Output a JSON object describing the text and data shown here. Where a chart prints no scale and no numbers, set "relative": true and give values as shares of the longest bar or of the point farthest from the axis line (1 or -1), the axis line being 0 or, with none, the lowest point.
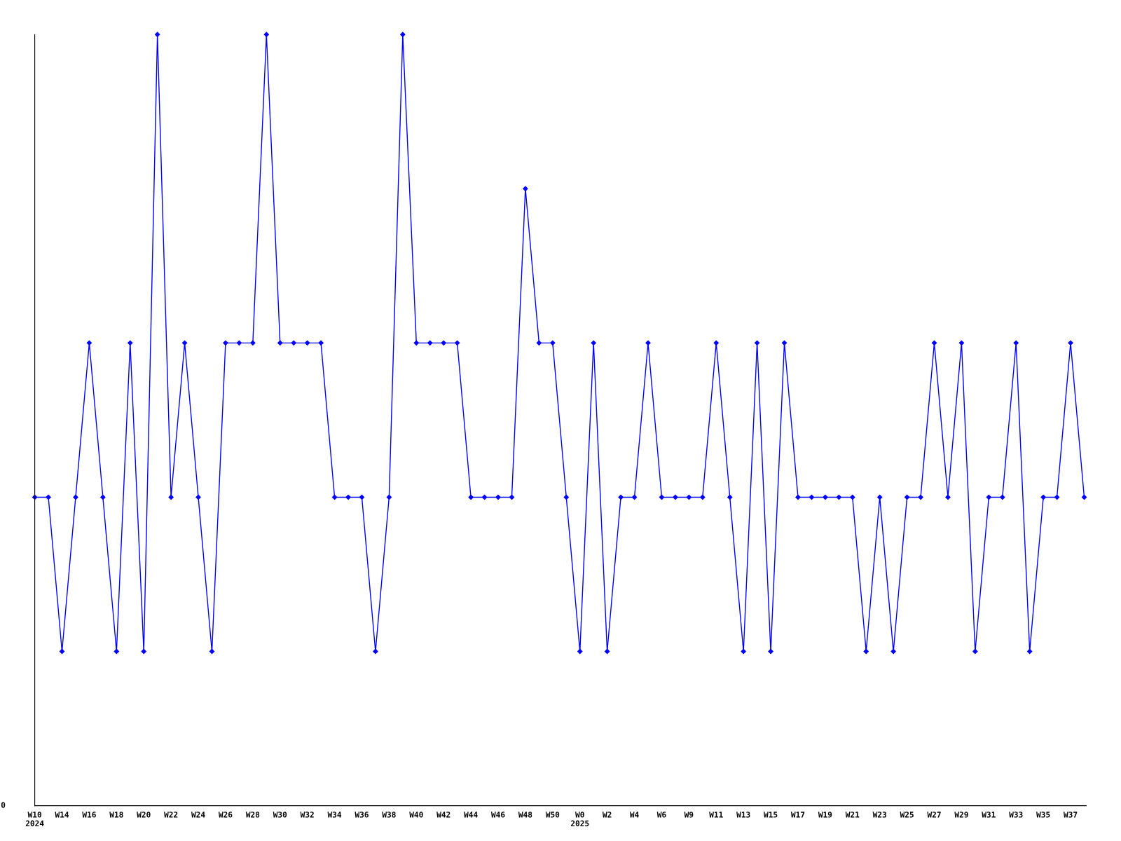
{
  "chart_data": {
    "type": "line",
    "relative": true,
    "color": "#0000ff",
    "marker": "diamond",
    "line_style": "solid",
    "grid": false,
    "legend": false,
    "annotations": [
      "0"
    ],
    "categories": [
      "W10\n2024",
      null,
      "W14",
      null,
      "W16",
      null,
      "W18",
      null,
      "W20",
      null,
      "W22",
      null,
      "W24",
      null,
      "W26",
      null,
      "W28",
      null,
      "W30",
      null,
      "W32",
      null,
      "W34",
      null,
      "W36",
      null,
      "W38",
      null,
      "W40",
      null,
      "W42",
      null,
      "W44",
      null,
      "W46",
      null,
      "W48",
      null,
      "W50",
      null,
      "W0\n2025",
      null,
      "W2",
      null,
      "W4",
      null,
      "W6",
      null,
      "W9",
      null,
      "W11",
      null,
      "W13",
      null,
      "W15",
      null,
      "W17",
      null,
      "W19",
      null,
      "W21",
      null,
      "W23",
      null,
      "W25",
      null,
      "W27",
      null,
      "W29",
      null,
      "W31",
      null,
      "W33",
      null,
      "W35",
      null,
      "W37",
      null
    ],
    "values": [
      0.4,
      0.4,
      0.2,
      0.4,
      0.6,
      0.4,
      0.2,
      0.6,
      0.2,
      1.0,
      0.4,
      0.6,
      0.4,
      0.2,
      0.6,
      0.6,
      0.6,
      1.0,
      0.6,
      0.6,
      0.6,
      0.6,
      0.4,
      0.4,
      0.4,
      0.2,
      0.4,
      1.0,
      0.6,
      0.6,
      0.6,
      0.6,
      0.4,
      0.4,
      0.4,
      0.4,
      0.8,
      0.6,
      0.6,
      0.4,
      0.2,
      0.6,
      0.2,
      0.4,
      0.4,
      0.6,
      0.4,
      0.4,
      0.4,
      0.4,
      0.6,
      0.4,
      0.2,
      0.6,
      0.2,
      0.6,
      0.4,
      0.4,
      0.4,
      0.4,
      0.4,
      0.2,
      0.4,
      0.2,
      0.4,
      0.4,
      0.6,
      0.4,
      0.6,
      0.2,
      0.4,
      0.4,
      0.6,
      0.2,
      0.4,
      0.4,
      0.6,
      0.4
    ]
  }
}
